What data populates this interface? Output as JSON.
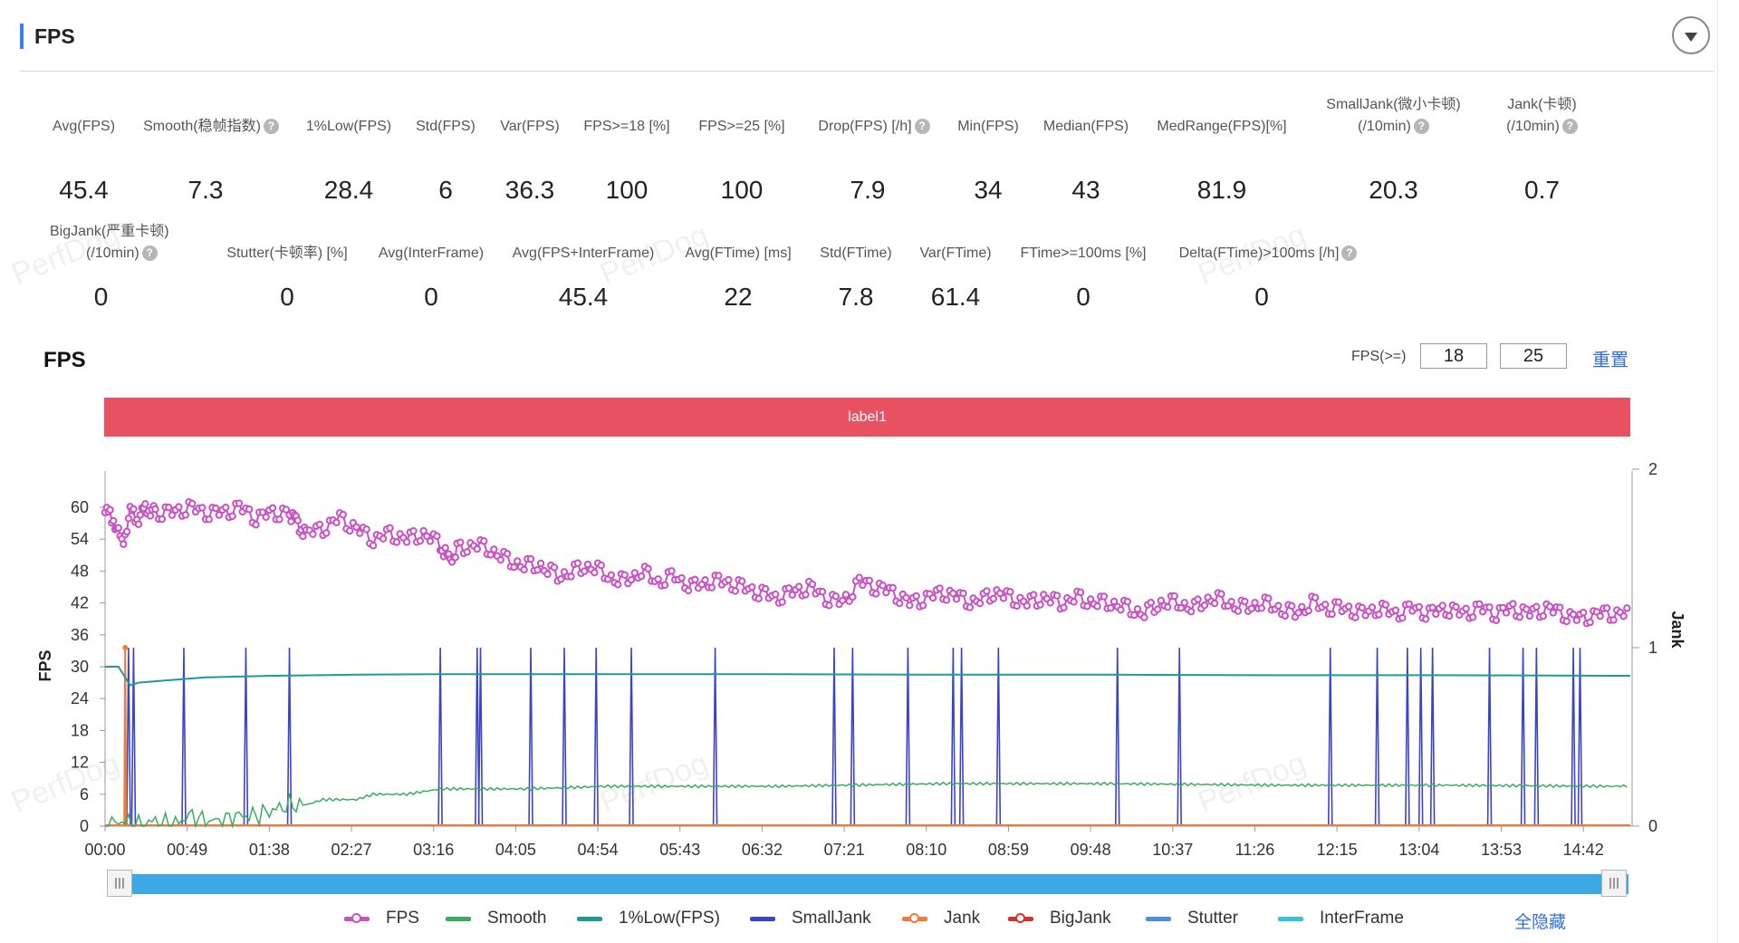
{
  "panel": {
    "title": "FPS"
  },
  "metrics_row1": [
    {
      "label": "Avg(FPS)",
      "value": "45.4",
      "help": false
    },
    {
      "label": "Smooth(稳帧指数)",
      "value": "7.3",
      "help": true
    },
    {
      "label": "1%Low(FPS)",
      "value": "28.4",
      "help": false
    },
    {
      "label": "Std(FPS)",
      "value": "6",
      "help": false
    },
    {
      "label": "Var(FPS)",
      "value": "36.3",
      "help": false
    },
    {
      "label": "FPS>=18 [%]",
      "value": "100",
      "help": false
    },
    {
      "label": "FPS>=25 [%]",
      "value": "100",
      "help": false
    },
    {
      "label": "Drop(FPS) [/h]",
      "value": "7.9",
      "help": true
    },
    {
      "label": "Min(FPS)",
      "value": "34",
      "help": false
    },
    {
      "label": "Median(FPS)",
      "value": "43",
      "help": false
    },
    {
      "label": "MedRange(FPS)[%]",
      "value": "81.9",
      "help": false
    },
    {
      "label": "SmallJank(微小卡顿)",
      "label2": "(/10min)",
      "value": "20.3",
      "help": true
    },
    {
      "label": "Jank(卡顿)",
      "label2": "(/10min)",
      "value": "0.7",
      "help": true
    }
  ],
  "metrics_row2": [
    {
      "label": "BigJank(严重卡顿)",
      "label2": "(/10min)",
      "value": "0",
      "help": true
    },
    {
      "label": "Stutter(卡顿率) [%]",
      "value": "0",
      "help": false
    },
    {
      "label": "Avg(InterFrame)",
      "value": "0",
      "help": false
    },
    {
      "label": "Avg(FPS+InterFrame)",
      "value": "45.4",
      "help": false
    },
    {
      "label": "Avg(FTime) [ms]",
      "value": "22",
      "help": false
    },
    {
      "label": "Std(FTime)",
      "value": "7.8",
      "help": false
    },
    {
      "label": "Var(FTime)",
      "value": "61.4",
      "help": false
    },
    {
      "label": "FTime>=100ms [%]",
      "value": "0",
      "help": false
    },
    {
      "label": "Delta(FTime)>100ms [/h]",
      "value": "0",
      "help": true
    }
  ],
  "chart_title": "FPS",
  "thresholds": {
    "label": "FPS(>=)",
    "v1": "18",
    "v2": "25",
    "reset": "重置"
  },
  "band_label": "label1",
  "legend": [
    {
      "name": "FPS",
      "color": "#c94fc4",
      "dot": true
    },
    {
      "name": "Smooth",
      "color": "#3bab5c",
      "dot": false
    },
    {
      "name": "1%Low(FPS)",
      "color": "#1e9a98",
      "dot": false
    },
    {
      "name": "SmallJank",
      "color": "#3a44c8",
      "dot": false
    },
    {
      "name": "Jank",
      "color": "#f07c34",
      "dot": true
    },
    {
      "name": "BigJank",
      "color": "#d6312e",
      "dot": true
    },
    {
      "name": "Stutter",
      "color": "#4e8de6",
      "dot": false
    },
    {
      "name": "InterFrame",
      "color": "#36c2d8",
      "dot": false
    }
  ],
  "hide_all": "全隐藏",
  "watermark": "PerfDog",
  "chart_data": {
    "type": "line",
    "xlabel": "",
    "ylabel": "FPS",
    "y2label": "Jank",
    "ylim": [
      0,
      66
    ],
    "y2lim": [
      0,
      2
    ],
    "yticks": [
      0,
      6,
      12,
      18,
      24,
      30,
      36,
      42,
      48,
      54,
      60
    ],
    "y2ticks": [
      0,
      1,
      2
    ],
    "xlim_sec": [
      0,
      910
    ],
    "xticks": [
      "00:00",
      "00:49",
      "01:38",
      "02:27",
      "03:16",
      "04:05",
      "04:54",
      "05:43",
      "06:32",
      "07:21",
      "08:10",
      "08:59",
      "09:48",
      "10:37",
      "11:26",
      "12:15",
      "13:04",
      "13:53",
      "14:42"
    ],
    "fps_series": {
      "name": "FPS",
      "points": [
        [
          0,
          59
        ],
        [
          5,
          58
        ],
        [
          10,
          53
        ],
        [
          15,
          59
        ],
        [
          20,
          58
        ],
        [
          25,
          60
        ],
        [
          30,
          59
        ],
        [
          40,
          59
        ],
        [
          50,
          60
        ],
        [
          60,
          59
        ],
        [
          70,
          59
        ],
        [
          80,
          60
        ],
        [
          90,
          58
        ],
        [
          100,
          59
        ],
        [
          110,
          59
        ],
        [
          115,
          57
        ],
        [
          120,
          55
        ],
        [
          130,
          56
        ],
        [
          140,
          58
        ],
        [
          150,
          56
        ],
        [
          160,
          54
        ],
        [
          170,
          55
        ],
        [
          180,
          54
        ],
        [
          190,
          55
        ],
        [
          200,
          53
        ],
        [
          205,
          50
        ],
        [
          210,
          52
        ],
        [
          220,
          53
        ],
        [
          230,
          52
        ],
        [
          240,
          50
        ],
        [
          250,
          49
        ],
        [
          260,
          49
        ],
        [
          270,
          47
        ],
        [
          280,
          48
        ],
        [
          290,
          49
        ],
        [
          300,
          47
        ],
        [
          310,
          46
        ],
        [
          320,
          48
        ],
        [
          330,
          46
        ],
        [
          340,
          47
        ],
        [
          350,
          45
        ],
        [
          360,
          46
        ],
        [
          370,
          46
        ],
        [
          380,
          45
        ],
        [
          390,
          44
        ],
        [
          400,
          43
        ],
        [
          410,
          44
        ],
        [
          420,
          45
        ],
        [
          430,
          43
        ],
        [
          440,
          42
        ],
        [
          450,
          46
        ],
        [
          460,
          45
        ],
        [
          470,
          44
        ],
        [
          480,
          42
        ],
        [
          490,
          43
        ],
        [
          500,
          44
        ],
        [
          510,
          43
        ],
        [
          520,
          42
        ],
        [
          530,
          44
        ],
        [
          540,
          43
        ],
        [
          550,
          42
        ],
        [
          560,
          43
        ],
        [
          570,
          42
        ],
        [
          580,
          43
        ],
        [
          590,
          42
        ],
        [
          600,
          42
        ],
        [
          610,
          41
        ],
        [
          620,
          40
        ],
        [
          630,
          42
        ],
        [
          640,
          42
        ],
        [
          650,
          41
        ],
        [
          660,
          43
        ],
        [
          670,
          42
        ],
        [
          680,
          41
        ],
        [
          690,
          42
        ],
        [
          700,
          41
        ],
        [
          710,
          40
        ],
        [
          720,
          42
        ],
        [
          730,
          41
        ],
        [
          740,
          41
        ],
        [
          750,
          40
        ],
        [
          760,
          41
        ],
        [
          770,
          40
        ],
        [
          780,
          41
        ],
        [
          790,
          40
        ],
        [
          800,
          41
        ],
        [
          810,
          40
        ],
        [
          820,
          41
        ],
        [
          830,
          40
        ],
        [
          840,
          41
        ],
        [
          850,
          40
        ],
        [
          860,
          41
        ],
        [
          870,
          40
        ],
        [
          880,
          39
        ],
        [
          890,
          40
        ],
        [
          900,
          40
        ],
        [
          910,
          40
        ]
      ]
    },
    "smooth_series": {
      "name": "Smooth",
      "points": [
        [
          0,
          0
        ],
        [
          10,
          1
        ],
        [
          20,
          0
        ],
        [
          30,
          1
        ],
        [
          40,
          0
        ],
        [
          50,
          2
        ],
        [
          60,
          1
        ],
        [
          70,
          1
        ],
        [
          80,
          2
        ],
        [
          90,
          2
        ],
        [
          100,
          3
        ],
        [
          110,
          4
        ],
        [
          120,
          4
        ],
        [
          130,
          5
        ],
        [
          140,
          5
        ],
        [
          150,
          5
        ],
        [
          160,
          6
        ],
        [
          170,
          6
        ],
        [
          180,
          6
        ],
        [
          200,
          7
        ],
        [
          220,
          7
        ],
        [
          250,
          7
        ],
        [
          300,
          7.5
        ],
        [
          350,
          7.5
        ],
        [
          400,
          7.5
        ],
        [
          500,
          8
        ],
        [
          600,
          8
        ],
        [
          700,
          7.7
        ],
        [
          800,
          7.7
        ],
        [
          900,
          7.5
        ],
        [
          910,
          7.6
        ]
      ]
    },
    "low1_series": {
      "name": "1%Low(FPS)",
      "points": [
        [
          0,
          30
        ],
        [
          8,
          30
        ],
        [
          15,
          26.5
        ],
        [
          20,
          27
        ],
        [
          40,
          27.5
        ],
        [
          60,
          28
        ],
        [
          100,
          28.3
        ],
        [
          150,
          28.5
        ],
        [
          200,
          28.6
        ],
        [
          300,
          28.6
        ],
        [
          400,
          28.6
        ],
        [
          500,
          28.5
        ],
        [
          600,
          28.5
        ],
        [
          700,
          28.4
        ],
        [
          800,
          28.4
        ],
        [
          900,
          28.3
        ],
        [
          910,
          28.3
        ]
      ]
    },
    "smalljank_times_sec": [
      14,
      17,
      47,
      84,
      110,
      200,
      222,
      224,
      254,
      274,
      293,
      314,
      364,
      435,
      446,
      479,
      506,
      511,
      533,
      604,
      641,
      731,
      759,
      777,
      785,
      792,
      826,
      846,
      854,
      876,
      880
    ],
    "jank_times_sec": [
      12
    ],
    "bigjank_times_sec": [],
    "stutter": 0,
    "interframe": 0
  }
}
